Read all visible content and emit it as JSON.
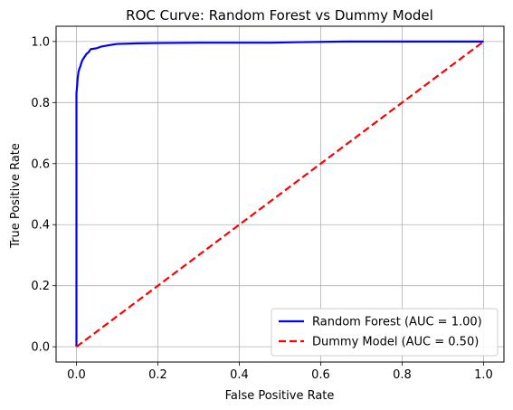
{
  "chart_data": {
    "type": "line",
    "title": "ROC Curve: Random Forest vs Dummy Model",
    "xlabel": "False Positive Rate",
    "ylabel": "True Positive Rate",
    "xlim": [
      -0.05,
      1.05
    ],
    "ylim": [
      -0.05,
      1.05
    ],
    "xticks": [
      0.0,
      0.2,
      0.4,
      0.6,
      0.8,
      1.0
    ],
    "yticks": [
      0.0,
      0.2,
      0.4,
      0.6,
      0.8,
      1.0
    ],
    "xtick_labels": [
      "0.0",
      "0.2",
      "0.4",
      "0.6",
      "0.8",
      "1.0"
    ],
    "ytick_labels": [
      "0.0",
      "0.2",
      "0.4",
      "0.6",
      "0.8",
      "1.0"
    ],
    "grid": true,
    "legend_position": "lower-right",
    "series": [
      {
        "name": "Random Forest (AUC = 1.00)",
        "color": "#0000ff",
        "line_style": "solid",
        "points": [
          [
            0.0,
            0.0
          ],
          [
            0.0,
            0.83
          ],
          [
            0.002,
            0.86
          ],
          [
            0.003,
            0.88
          ],
          [
            0.005,
            0.9
          ],
          [
            0.007,
            0.91
          ],
          [
            0.01,
            0.92
          ],
          [
            0.012,
            0.93
          ],
          [
            0.015,
            0.94
          ],
          [
            0.02,
            0.95
          ],
          [
            0.025,
            0.96
          ],
          [
            0.03,
            0.965
          ],
          [
            0.035,
            0.975
          ],
          [
            0.045,
            0.977
          ],
          [
            0.05,
            0.978
          ],
          [
            0.06,
            0.983
          ],
          [
            0.08,
            0.988
          ],
          [
            0.1,
            0.992
          ],
          [
            0.15,
            0.994
          ],
          [
            0.2,
            0.995
          ],
          [
            0.3,
            0.996
          ],
          [
            0.48,
            0.996
          ],
          [
            0.55,
            0.998
          ],
          [
            0.66,
            1.0
          ],
          [
            1.0,
            1.0
          ]
        ]
      },
      {
        "name": "Dummy Model (AUC = 0.50)",
        "color": "#ff0000",
        "line_style": "dashed",
        "points": [
          [
            0.0,
            0.0
          ],
          [
            1.0,
            1.0
          ]
        ]
      }
    ]
  }
}
